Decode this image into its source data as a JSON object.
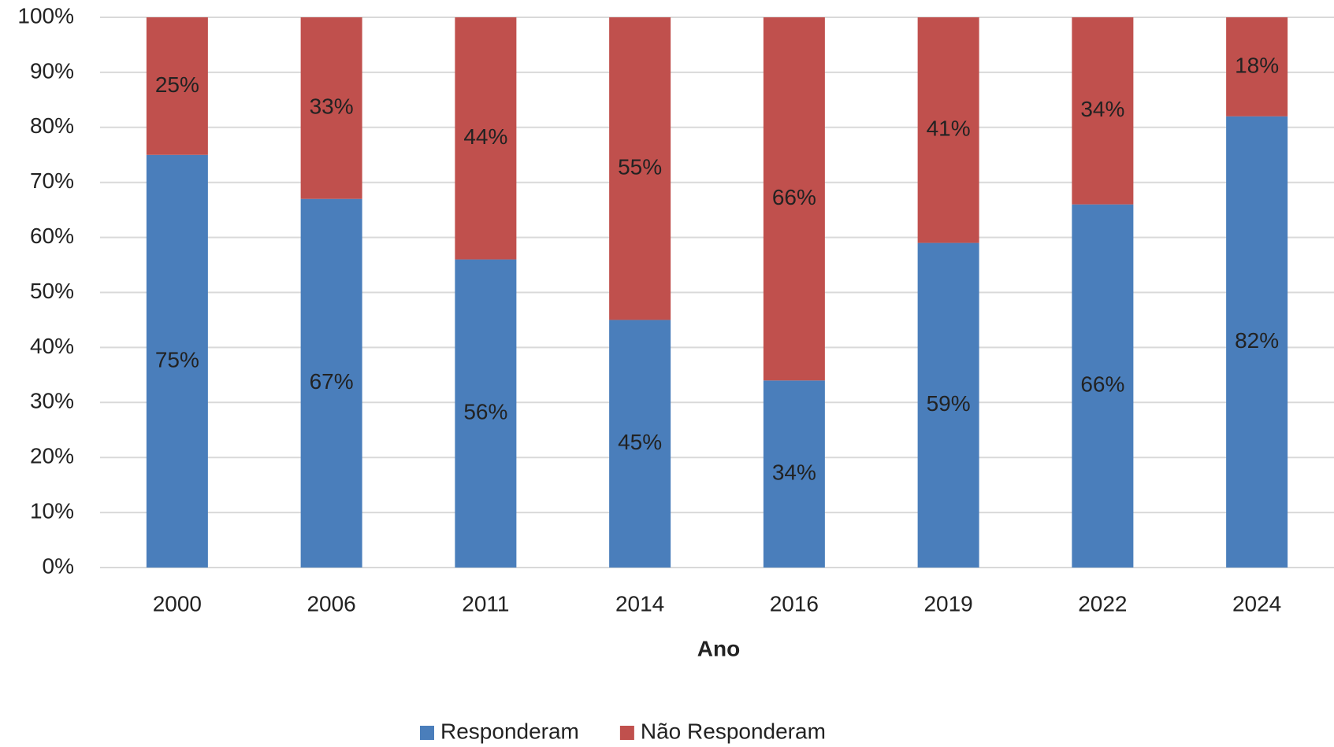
{
  "chart_data": {
    "type": "stacked_bar",
    "x_label": "Ano",
    "categories": [
      "2000",
      "2006",
      "2011",
      "2014",
      "2016",
      "2019",
      "2022",
      "2024"
    ],
    "series": [
      {
        "name": "Responderam",
        "color": "#4a7ebb",
        "values": [
          75,
          67,
          56,
          45,
          34,
          59,
          66,
          82
        ],
        "value_labels": [
          "75%",
          "67%",
          "56%",
          "45%",
          "34%",
          "59%",
          "66%",
          "82%"
        ]
      },
      {
        "name": "Não Responderam",
        "color": "#c0504d",
        "values": [
          25,
          33,
          44,
          55,
          66,
          41,
          34,
          18
        ],
        "value_labels": [
          "25%",
          "33%",
          "44%",
          "55%",
          "66%",
          "41%",
          "34%",
          "18%"
        ]
      }
    ],
    "ylim": [
      0,
      100
    ],
    "yticks": [
      {
        "value": 0,
        "label": "0%"
      },
      {
        "value": 10,
        "label": "10%"
      },
      {
        "value": 20,
        "label": "20%"
      },
      {
        "value": 30,
        "label": "30%"
      },
      {
        "value": 40,
        "label": "40%"
      },
      {
        "value": 50,
        "label": "50%"
      },
      {
        "value": 60,
        "label": "60%"
      },
      {
        "value": 70,
        "label": "70%"
      },
      {
        "value": 80,
        "label": "80%"
      },
      {
        "value": 90,
        "label": "90%"
      },
      {
        "value": 100,
        "label": "100%"
      }
    ],
    "grid": true,
    "legend": "bottom"
  }
}
